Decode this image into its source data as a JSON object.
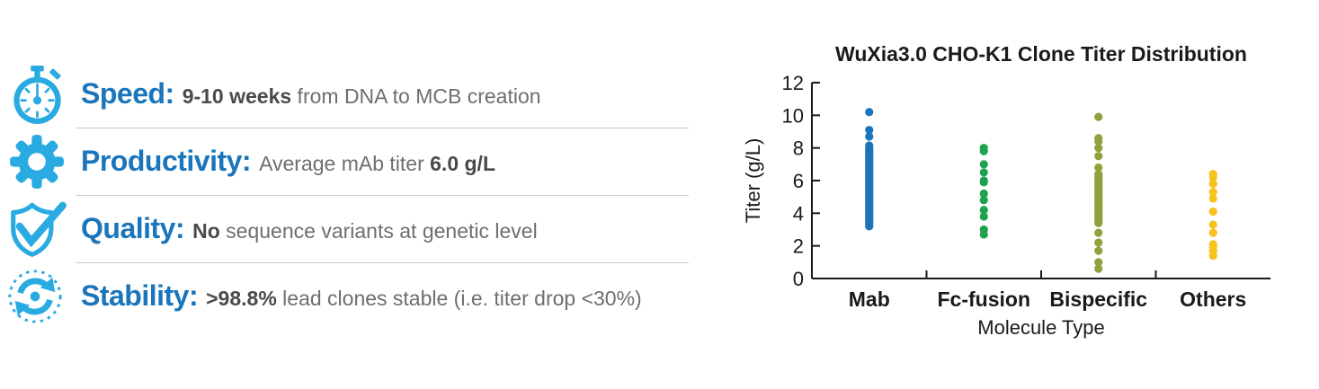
{
  "colors": {
    "heading_blue": "#1b75bb",
    "icon_blue": "#29abe2",
    "body_gray": "#6d6e71",
    "bold_gray": "#4a4a4c",
    "divider_gray": "#c7c8ca",
    "axis_black": "#1a1a1a"
  },
  "features": {
    "items": [
      {
        "icon": "stopwatch-icon",
        "title": "Speed:",
        "pre": "",
        "bold": "9-10 weeks",
        "post": " from DNA to MCB creation"
      },
      {
        "icon": "gear-icon",
        "title": "Productivity:",
        "pre": "Average mAb titer ",
        "bold": "6.0 g/L",
        "post": ""
      },
      {
        "icon": "shield-check-icon",
        "title": "Quality:",
        "pre": "",
        "bold": "No",
        "post": " sequence variants at genetic level"
      },
      {
        "icon": "cycle-arrows-icon",
        "title": "Stability:",
        "pre": "",
        "bold": ">98.8%",
        "post": " lead clones stable (i.e. titer drop <30%)"
      }
    ]
  },
  "chart_data": {
    "type": "scatter",
    "title": "WuXia3.0 CHO-K1 Clone Titer Distribution",
    "xlabel": "Molecule Type",
    "ylabel": "Titer (g/L)",
    "ylim": [
      0,
      12
    ],
    "yticks": [
      0,
      2,
      4,
      6,
      8,
      10,
      12
    ],
    "grid": false,
    "legend": "none",
    "categories": [
      "Mab",
      "Fc-fusion",
      "Bispecific",
      "Others"
    ],
    "series": [
      {
        "name": "Mab",
        "color": "#1b75bc",
        "values": [
          10.2,
          9.1,
          8.7,
          8.15,
          8.0,
          7.9,
          7.8,
          7.7,
          7.6,
          7.5,
          7.4,
          7.3,
          7.2,
          7.1,
          7.0,
          6.9,
          6.8,
          6.7,
          6.6,
          6.5,
          6.4,
          6.3,
          6.2,
          6.1,
          6.0,
          5.9,
          5.8,
          5.7,
          5.6,
          5.5,
          5.4,
          5.3,
          5.2,
          5.1,
          5.0,
          4.9,
          4.8,
          4.7,
          4.6,
          4.5,
          4.4,
          4.3,
          4.2,
          4.1,
          4.0,
          3.9,
          3.8,
          3.7,
          3.6,
          3.5,
          3.4,
          3.3,
          3.2
        ]
      },
      {
        "name": "Fc-fusion",
        "color": "#1fa24d",
        "values": [
          8.0,
          7.8,
          7.0,
          6.5,
          6.0,
          5.9,
          5.2,
          4.8,
          4.2,
          3.8,
          3.0,
          2.7
        ]
      },
      {
        "name": "Bispecific",
        "color": "#8fa23c",
        "values": [
          9.9,
          8.6,
          8.4,
          8.0,
          7.5,
          6.8,
          6.4,
          6.3,
          6.2,
          6.1,
          6.0,
          5.9,
          5.8,
          5.7,
          5.6,
          5.5,
          5.4,
          5.3,
          5.2,
          5.1,
          5.0,
          4.9,
          4.8,
          4.7,
          4.6,
          4.5,
          4.4,
          4.3,
          4.2,
          4.1,
          4.0,
          3.9,
          3.8,
          3.7,
          3.6,
          3.5,
          3.4,
          2.8,
          2.2,
          1.7,
          1.0,
          0.6
        ]
      },
      {
        "name": "Others",
        "color": "#f6c21d",
        "values": [
          6.4,
          6.2,
          5.8,
          5.3,
          4.9,
          4.1,
          3.3,
          2.8,
          2.1,
          1.9,
          1.7,
          1.4
        ]
      }
    ]
  }
}
